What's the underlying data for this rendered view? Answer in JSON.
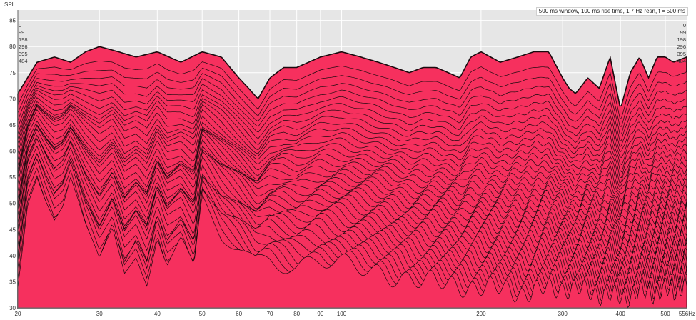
{
  "chart_data": {
    "type": "area",
    "subtype": "waterfall",
    "ylabel": "SPL",
    "xunit": "Hz",
    "info": "500 ms window, 100 ms rise time,  1,7 Hz resn, t = 500 ms",
    "xscale": "log",
    "xlim": [
      20,
      556
    ],
    "ylim": [
      30,
      87
    ],
    "x_ticks": [
      20,
      30,
      40,
      50,
      60,
      70,
      80,
      90,
      100,
      200,
      300,
      400,
      500
    ],
    "x_tick_labels": [
      "20",
      "30",
      "40",
      "50",
      "60",
      "70",
      "80",
      "90",
      "100",
      "200",
      "300",
      "400",
      "500"
    ],
    "x_end_label": "556Hz",
    "y_ticks": [
      30,
      35,
      40,
      45,
      50,
      55,
      60,
      65,
      70,
      75,
      80,
      85
    ],
    "time_labels_ms": [
      "0",
      "99",
      "198",
      "296",
      "395",
      "484"
    ],
    "slice_count": 40,
    "colors": {
      "fill": "#f6305e",
      "line": "#1a0a0e",
      "plot_bg": "#e6e6e6",
      "grid": "#ffffff"
    },
    "series": [
      {
        "name": "0",
        "x": [
          20,
          22,
          24,
          26,
          28,
          30,
          33,
          36,
          40,
          45,
          50,
          55,
          60,
          63,
          66,
          70,
          75,
          80,
          90,
          100,
          110,
          120,
          130,
          140,
          150,
          160,
          170,
          180,
          190,
          200,
          220,
          240,
          260,
          280,
          300,
          310,
          320,
          340,
          360,
          380,
          400,
          420,
          440,
          460,
          480,
          500,
          520,
          556
        ],
        "values": [
          71,
          77,
          78,
          77,
          79,
          80,
          79,
          78,
          79,
          77,
          79,
          78,
          74,
          72,
          70,
          74,
          76,
          76,
          78,
          79,
          78,
          77,
          76,
          75,
          76,
          76,
          75,
          74,
          78,
          79,
          77,
          78,
          79,
          79,
          74,
          72,
          71,
          74,
          72,
          78,
          68,
          75,
          78,
          74,
          78,
          78,
          77,
          78
        ]
      },
      {
        "name": "484",
        "x": [
          20,
          21,
          22,
          23,
          24,
          25,
          26,
          27,
          28,
          30,
          32,
          34,
          36,
          38,
          40,
          42,
          45,
          48,
          50,
          55,
          60,
          65,
          70,
          80,
          90,
          100,
          120,
          150,
          200,
          250,
          300,
          350,
          400,
          450,
          500,
          556
        ],
        "values": [
          36,
          52,
          57,
          52,
          48,
          50,
          55,
          50,
          45,
          38,
          44,
          36,
          40,
          35,
          44,
          38,
          42,
          36,
          50,
          44,
          42,
          39,
          40,
          38,
          39,
          38,
          37,
          35,
          34,
          33,
          34,
          33,
          32,
          33,
          33,
          34
        ]
      }
    ]
  }
}
